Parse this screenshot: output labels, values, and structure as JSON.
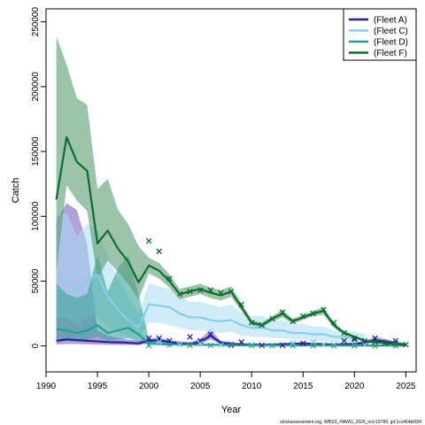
{
  "chart_data": {
    "type": "line",
    "xlabel": "Year",
    "ylabel": "Catch",
    "xlim": [
      1990,
      2026
    ],
    "ylim": [
      -20000,
      260000
    ],
    "x_ticks": [
      1990,
      1995,
      2000,
      2005,
      2010,
      2015,
      2020,
      2025
    ],
    "y_ticks": [
      0,
      50000,
      100000,
      150000,
      200000,
      250000
    ],
    "grid": false,
    "legend_position": "top-right",
    "footer": "stockassessment.org, WBSS_HAWG_2026_m1r19789, git:1cc464b606f",
    "series": [
      {
        "name": "(Fleet A)",
        "color": "#231f9c",
        "band_color": "#7b64c0",
        "years": [
          1991,
          1992,
          1993,
          1994,
          1995,
          1996,
          1997,
          1998,
          1999,
          2000,
          2001,
          2002,
          2003,
          2004,
          2005,
          2006,
          2007,
          2008,
          2009,
          2010,
          2011,
          2012,
          2013,
          2014,
          2015,
          2016,
          2017,
          2018,
          2019,
          2020,
          2021,
          2022,
          2023,
          2024,
          2025
        ],
        "fit": [
          4000,
          5000,
          4500,
          4000,
          3500,
          3000,
          2800,
          2500,
          2000,
          4000,
          4500,
          3000,
          2000,
          1500,
          3000,
          8000,
          2500,
          1500,
          1000,
          1000,
          800,
          1000,
          1200,
          1500,
          1800,
          1500,
          1200,
          1000,
          1200,
          1500,
          2500,
          4500,
          3500,
          2000,
          1000
        ],
        "lower": [
          1000,
          1500,
          1500,
          1200,
          1000,
          900,
          800,
          700,
          600,
          2000,
          2500,
          1500,
          800,
          500,
          1500,
          5000,
          1200,
          500,
          300,
          300,
          200,
          300,
          400,
          500,
          600,
          500,
          400,
          300,
          400,
          500,
          1000,
          2500,
          1800,
          800,
          300
        ],
        "upper": [
          97000,
          110000,
          105000,
          78000,
          12000,
          8000,
          6000,
          5000,
          4000,
          6000,
          6500,
          4500,
          3500,
          3000,
          5500,
          12500,
          4000,
          3000,
          2000,
          2000,
          1600,
          1800,
          2200,
          2600,
          3000,
          2600,
          2200,
          2000,
          2200,
          2600,
          4000,
          7000,
          5500,
          3500,
          2000
        ],
        "obs_x": [
          2000,
          2001,
          2002,
          2004,
          2005,
          2006,
          2008,
          2009,
          2011,
          2013,
          2014,
          2015,
          2017,
          2019,
          2020,
          2021,
          2022,
          2024
        ],
        "obs_y": [
          6000,
          6000,
          4000,
          7000,
          4000,
          9000,
          1000,
          3000,
          500,
          500,
          2000,
          2000,
          1000,
          4000,
          5000,
          2000,
          6000,
          4000
        ]
      },
      {
        "name": "(Fleet C)",
        "color": "#87ceeb",
        "band_color": "#aadcf2",
        "years": [
          1991,
          1992,
          1993,
          1994,
          1995,
          1996,
          1997,
          1998,
          1999,
          2000,
          2001,
          2002,
          2003,
          2004,
          2005,
          2006,
          2007,
          2008,
          2009,
          2010,
          2011,
          2012,
          2013,
          2014,
          2015,
          2016,
          2017,
          2018,
          2019,
          2020,
          2021
        ],
        "fit": [
          56000,
          52000,
          42000,
          51000,
          55000,
          38000,
          28000,
          20000,
          14000,
          32000,
          31000,
          30000,
          25000,
          22000,
          22000,
          20000,
          19000,
          20000,
          16000,
          14000,
          14000,
          12000,
          12000,
          10000,
          10000,
          9000,
          9000,
          7000,
          7000,
          6000,
          5000
        ],
        "lower": [
          22000,
          22000,
          16000,
          22000,
          24000,
          15000,
          10000,
          7000,
          5000,
          18000,
          18000,
          16000,
          14000,
          12000,
          12000,
          11000,
          10000,
          11000,
          8000,
          7000,
          7000,
          6000,
          6000,
          5000,
          5000,
          4000,
          4000,
          3000,
          3000,
          2500,
          2000
        ],
        "upper": [
          100000,
          103000,
          85000,
          94000,
          90000,
          70000,
          52000,
          38000,
          25000,
          48000,
          46000,
          44000,
          38000,
          34000,
          34000,
          32000,
          30000,
          32000,
          26000,
          23000,
          23000,
          20000,
          20000,
          17000,
          17000,
          15000,
          15000,
          12000,
          12000,
          11000,
          9000
        ],
        "obs_x": [
          2001,
          2003,
          2005,
          2007,
          2010,
          2012,
          2014,
          2016,
          2017,
          2018,
          2020,
          2021
        ],
        "obs_y": [
          3000,
          1000,
          2000,
          500,
          1000,
          500,
          2000,
          3000,
          1000,
          1000,
          500,
          1000
        ]
      },
      {
        "name": "(Fleet D)",
        "color": "#22a096",
        "band_color": "#3aa39a",
        "years": [
          1991,
          1992,
          1993,
          1994,
          1995,
          1996,
          1997,
          1998,
          1999,
          2000,
          2001,
          2002,
          2003,
          2004,
          2005,
          2006,
          2007,
          2008,
          2009,
          2010,
          2011,
          2012,
          2013,
          2014,
          2015,
          2016,
          2017,
          2018,
          2019,
          2020,
          2021,
          2022,
          2023,
          2024,
          2025
        ],
        "fit": [
          13000,
          12000,
          10000,
          12000,
          16000,
          10000,
          12000,
          14000,
          9000,
          2000,
          1500,
          1200,
          1000,
          1000,
          800,
          800,
          700,
          600,
          500,
          500,
          400,
          400,
          400,
          400,
          400,
          400,
          400,
          400,
          300,
          300,
          300,
          300,
          300,
          300,
          300
        ],
        "lower": [
          5000,
          5000,
          4000,
          5000,
          7000,
          4000,
          5000,
          6000,
          3500,
          800,
          600,
          500,
          400,
          400,
          300,
          300,
          300,
          200,
          200,
          200,
          150,
          150,
          150,
          150,
          150,
          150,
          150,
          150,
          100,
          100,
          100,
          100,
          100,
          100,
          100
        ],
        "upper": [
          48000,
          40000,
          37000,
          40000,
          70000,
          42000,
          60000,
          70000,
          40000,
          5000,
          4000,
          3000,
          2500,
          2500,
          2000,
          2000,
          1800,
          1500,
          1200,
          1200,
          1000,
          1000,
          1000,
          1000,
          1000,
          1000,
          1000,
          1000,
          800,
          800,
          800,
          800,
          800,
          800,
          800
        ],
        "obs_x": [
          2000,
          2002,
          2004,
          2006,
          2008,
          2010,
          2012,
          2014,
          2016,
          2018,
          2020,
          2022,
          2024
        ],
        "obs_y": [
          500,
          800,
          500,
          500,
          300,
          300,
          200,
          300,
          200,
          200,
          200,
          100,
          100
        ]
      },
      {
        "name": "(Fleet F)",
        "color": "#0c6c2c",
        "band_color": "#5a9c72",
        "years": [
          1991,
          1992,
          1993,
          1994,
          1995,
          1996,
          1997,
          1998,
          1999,
          2000,
          2001,
          2002,
          2003,
          2004,
          2005,
          2006,
          2007,
          2008,
          2009,
          2010,
          2011,
          2012,
          2013,
          2014,
          2015,
          2016,
          2017,
          2018,
          2019,
          2020,
          2021,
          2022,
          2023,
          2024,
          2025
        ],
        "fit": [
          113000,
          161000,
          142000,
          135000,
          79000,
          89000,
          75000,
          65000,
          49000,
          62000,
          58000,
          50000,
          40000,
          42000,
          44000,
          41000,
          39000,
          42000,
          30000,
          18000,
          16000,
          21000,
          25000,
          19000,
          22000,
          25000,
          27000,
          16000,
          10000,
          7000,
          4000,
          3000,
          2000,
          1500,
          1000
        ],
        "lower": [
          57000,
          124000,
          112000,
          104000,
          52000,
          66000,
          57000,
          48000,
          36000,
          56000,
          52000,
          45000,
          36000,
          38000,
          40000,
          37000,
          35000,
          38000,
          27000,
          16000,
          14000,
          19000,
          22000,
          17000,
          20000,
          23000,
          24000,
          14000,
          8500,
          6000,
          3300,
          2400,
          1500,
          1100,
          700
        ],
        "upper": [
          239000,
          217000,
          191000,
          186000,
          121000,
          129000,
          105000,
          94000,
          77000,
          68000,
          64000,
          55000,
          44000,
          46000,
          48000,
          45000,
          43000,
          46000,
          33000,
          20000,
          18000,
          23000,
          28000,
          21000,
          24000,
          27000,
          30000,
          18000,
          11500,
          8000,
          4700,
          3600,
          2500,
          1900,
          1300
        ],
        "obs_x": [
          2000,
          2001,
          2002,
          2003,
          2004,
          2005,
          2006,
          2007,
          2008,
          2009,
          2010,
          2011,
          2012,
          2013,
          2014,
          2015,
          2016,
          2017,
          2018,
          2019,
          2020,
          2021,
          2022,
          2023,
          2024,
          2025
        ],
        "obs_y": [
          81000,
          73000,
          52000,
          40000,
          42000,
          43000,
          43000,
          41000,
          42000,
          32000,
          18000,
          16000,
          21000,
          26000,
          19000,
          23000,
          25000,
          28000,
          18000,
          10000,
          6000,
          4000,
          3000,
          2000,
          2000,
          1000
        ]
      }
    ]
  }
}
